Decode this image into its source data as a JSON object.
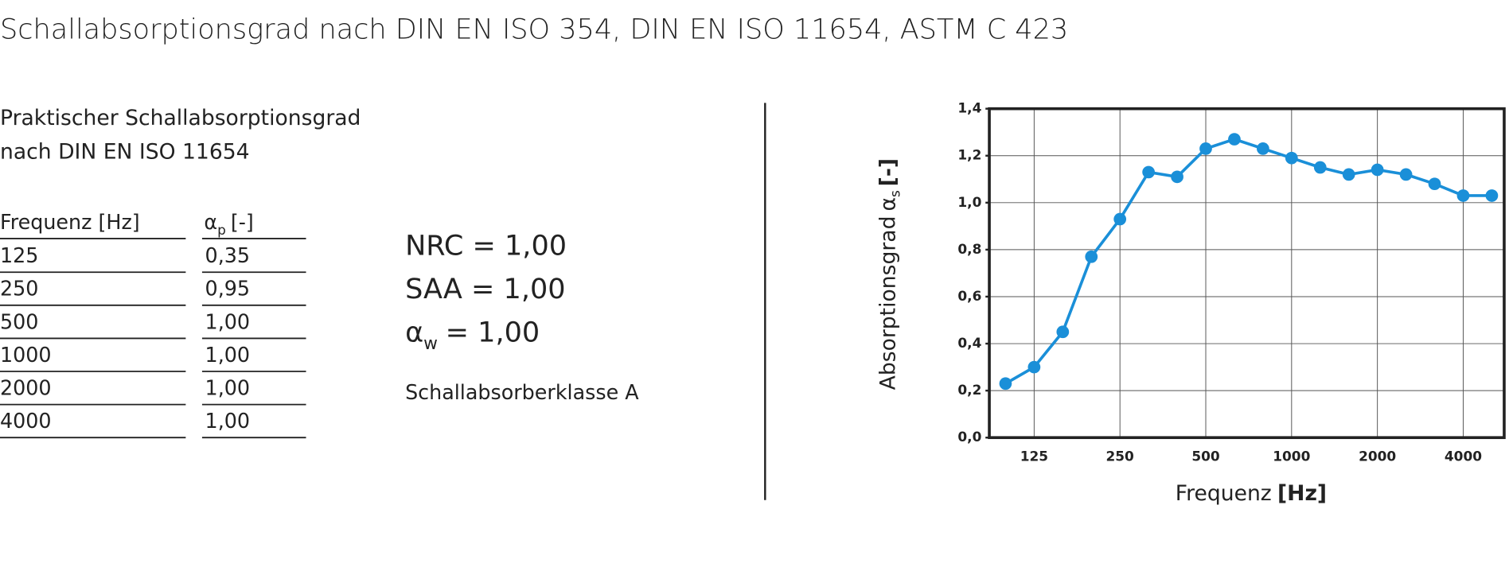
{
  "header": {
    "title": "Schallabsorptionsgrad nach DIN EN ISO 354, DIN EN ISO 11654, ASTM C 423"
  },
  "section": {
    "line1": "Praktischer Schallabsorptionsgrad",
    "line2": "nach DIN EN ISO 11654"
  },
  "table": {
    "header": {
      "freq": "Frequenz [Hz]",
      "alpha": "α",
      "alpha_sub": "p",
      "unit": "[-]"
    },
    "rows": [
      [
        "125",
        "0,35"
      ],
      [
        "250",
        "0,95"
      ],
      [
        "500",
        "1,00"
      ],
      [
        "1000",
        "1,00"
      ],
      [
        "2000",
        "1,00"
      ],
      [
        "4000",
        "1,00"
      ]
    ]
  },
  "ratings": {
    "nrc": "NRC = 1,00",
    "saa": "SAA = 1,00",
    "aw_symbol": "α",
    "aw_sub": "w",
    "aw_value": "= 1,00",
    "class": "Schallabsorberklasse A"
  },
  "chart_data": {
    "type": "line",
    "x_label": "Frequenz",
    "x_unit": "[Hz]",
    "y_label": "Absorptionsgrad",
    "y_symbol": "α",
    "y_sub": "s",
    "y_unit": "[-]",
    "categories": [
      null,
      "125",
      null,
      null,
      "250",
      null,
      null,
      "500",
      null,
      null,
      "1000",
      null,
      null,
      "2000",
      null,
      null,
      "4000",
      null
    ],
    "values": [
      0.23,
      0.3,
      0.45,
      0.77,
      0.93,
      1.13,
      1.11,
      1.23,
      1.27,
      1.23,
      1.19,
      1.15,
      1.12,
      1.14,
      1.12,
      1.08,
      1.03,
      1.03
    ],
    "color": "#1a8fd8",
    "ylim": [
      0,
      1.4
    ],
    "yticks": [
      {
        "value": 0,
        "label": "0,0"
      },
      {
        "value": 0.2,
        "label": "0,2"
      },
      {
        "value": 0.4,
        "label": "0,4"
      },
      {
        "value": 0.6,
        "label": "0,6"
      },
      {
        "value": 0.8,
        "label": "0,8"
      },
      {
        "value": 1.0,
        "label": "1,0"
      },
      {
        "value": 1.2,
        "label": "1,2"
      },
      {
        "value": 1.4,
        "label": "1,4"
      }
    ],
    "grid": true
  }
}
